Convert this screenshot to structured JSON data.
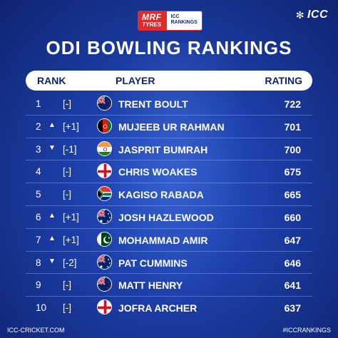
{
  "sponsor": {
    "mrf_line1": "MRF",
    "mrf_line2": "TYRES",
    "icc_line1": "ICC",
    "icc_line2": "RANKINGS"
  },
  "brand": {
    "logo_text": "ICC"
  },
  "title": "ODI BOWLING RANKINGS",
  "columns": {
    "rank": "RANK",
    "player": "PLAYER",
    "rating": "RATING"
  },
  "rows": [
    {
      "rank": "1",
      "arrow": "",
      "move": "[-]",
      "flag": "new-zealand",
      "player": "TRENT BOULT",
      "rating": "722"
    },
    {
      "rank": "2",
      "arrow": "▲",
      "move": "[+1]",
      "flag": "afghanistan",
      "player": "MUJEEB UR RAHMAN",
      "rating": "701"
    },
    {
      "rank": "3",
      "arrow": "▼",
      "move": "[-1]",
      "flag": "india",
      "player": "JASPRIT BUMRAH",
      "rating": "700"
    },
    {
      "rank": "4",
      "arrow": "",
      "move": "[-]",
      "flag": "england",
      "player": "CHRIS WOAKES",
      "rating": "675"
    },
    {
      "rank": "5",
      "arrow": "",
      "move": "[-]",
      "flag": "south-africa",
      "player": "KAGISO RABADA",
      "rating": "665"
    },
    {
      "rank": "6",
      "arrow": "▲",
      "move": "[+1]",
      "flag": "australia",
      "player": "JOSH HAZLEWOOD",
      "rating": "660"
    },
    {
      "rank": "7",
      "arrow": "▲",
      "move": "[+1]",
      "flag": "pakistan",
      "player": "MOHAMMAD AMIR",
      "rating": "647"
    },
    {
      "rank": "8",
      "arrow": "▼",
      "move": "[-2]",
      "flag": "australia",
      "player": "PAT CUMMINS",
      "rating": "646"
    },
    {
      "rank": "9",
      "arrow": "",
      "move": "[-]",
      "flag": "new-zealand",
      "player": "MATT HENRY",
      "rating": "641"
    },
    {
      "rank": "10",
      "arrow": "",
      "move": "[-]",
      "flag": "england",
      "player": "JOFRA ARCHER",
      "rating": "637"
    }
  ],
  "footer": {
    "left": "ICC-CRICKET.COM",
    "right": "#ICCRANKINGS"
  },
  "colors": {
    "background": "#1b3da6",
    "header_bg": "#ffffff",
    "header_text": "#0f2470",
    "mrf_red": "#e12a2a"
  }
}
